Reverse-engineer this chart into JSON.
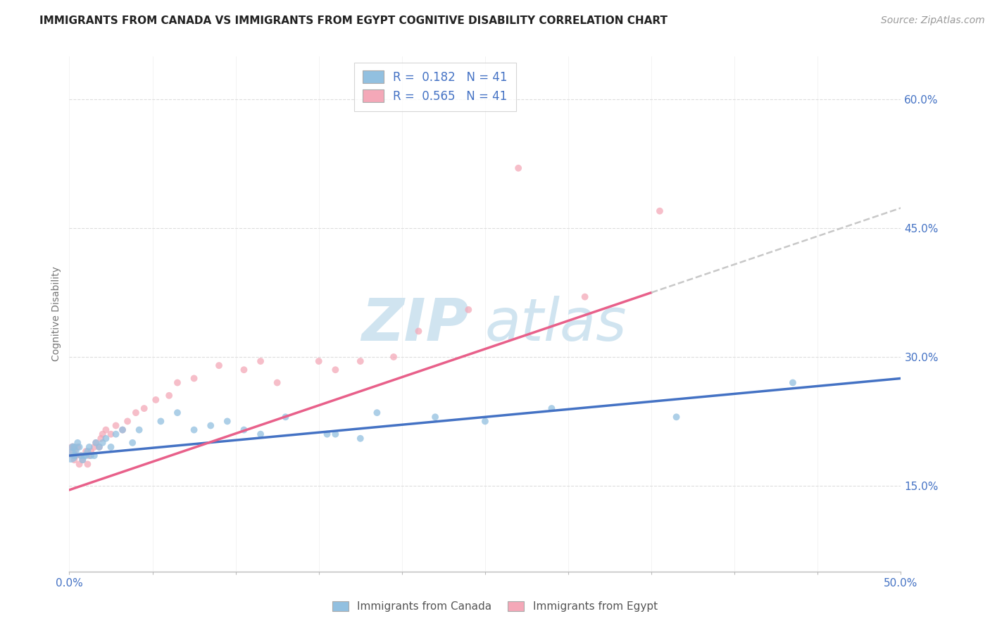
{
  "title": "IMMIGRANTS FROM CANADA VS IMMIGRANTS FROM EGYPT COGNITIVE DISABILITY CORRELATION CHART",
  "source_text": "Source: ZipAtlas.com",
  "ylabel": "Cognitive Disability",
  "xlim": [
    0.0,
    0.5
  ],
  "ylim": [
    0.05,
    0.65
  ],
  "x_ticks": [
    0.0,
    0.05,
    0.1,
    0.15,
    0.2,
    0.25,
    0.3,
    0.35,
    0.4,
    0.45,
    0.5
  ],
  "y_ticks": [
    0.15,
    0.3,
    0.45,
    0.6
  ],
  "R_canada": 0.182,
  "N_canada": 41,
  "R_egypt": 0.565,
  "N_egypt": 41,
  "color_canada": "#92c0e0",
  "color_egypt": "#f4a8b8",
  "color_canada_line": "#4472c4",
  "color_egypt_line": "#e8608a",
  "color_dash": "#c8c8c8",
  "watermark_color": "#d0e4f0",
  "title_color": "#222222",
  "tick_color": "#4472c4",
  "ylabel_color": "#777777",
  "source_color": "#999999",
  "legend_label_color": "#4472c4",
  "grid_color": "#dddddd",
  "canada_scatter_x": [
    0.001,
    0.002,
    0.003,
    0.003,
    0.004,
    0.005,
    0.006,
    0.007,
    0.008,
    0.009,
    0.01,
    0.011,
    0.012,
    0.013,
    0.015,
    0.016,
    0.018,
    0.02,
    0.022,
    0.025,
    0.028,
    0.032,
    0.038,
    0.042,
    0.055,
    0.065,
    0.075,
    0.085,
    0.095,
    0.105,
    0.115,
    0.13,
    0.155,
    0.16,
    0.175,
    0.185,
    0.22,
    0.25,
    0.29,
    0.365,
    0.435
  ],
  "canada_scatter_y": [
    0.185,
    0.195,
    0.195,
    0.185,
    0.19,
    0.2,
    0.195,
    0.185,
    0.18,
    0.185,
    0.185,
    0.19,
    0.195,
    0.185,
    0.185,
    0.2,
    0.195,
    0.2,
    0.205,
    0.195,
    0.21,
    0.215,
    0.2,
    0.215,
    0.225,
    0.235,
    0.215,
    0.22,
    0.225,
    0.215,
    0.21,
    0.23,
    0.21,
    0.21,
    0.205,
    0.235,
    0.23,
    0.225,
    0.24,
    0.23,
    0.27
  ],
  "canada_scatter_sizes": [
    200,
    60,
    50,
    50,
    50,
    50,
    50,
    50,
    50,
    50,
    50,
    50,
    50,
    50,
    50,
    50,
    50,
    50,
    50,
    50,
    50,
    50,
    50,
    50,
    50,
    50,
    50,
    50,
    50,
    50,
    50,
    50,
    50,
    50,
    50,
    50,
    50,
    50,
    50,
    50,
    50
  ],
  "egypt_scatter_x": [
    0.001,
    0.002,
    0.003,
    0.004,
    0.005,
    0.006,
    0.007,
    0.008,
    0.01,
    0.011,
    0.012,
    0.013,
    0.015,
    0.016,
    0.018,
    0.019,
    0.02,
    0.022,
    0.025,
    0.028,
    0.032,
    0.035,
    0.04,
    0.045,
    0.052,
    0.06,
    0.065,
    0.075,
    0.09,
    0.105,
    0.115,
    0.125,
    0.15,
    0.16,
    0.175,
    0.195,
    0.21,
    0.24,
    0.27,
    0.31,
    0.355
  ],
  "egypt_scatter_y": [
    0.19,
    0.195,
    0.18,
    0.185,
    0.195,
    0.175,
    0.185,
    0.18,
    0.19,
    0.175,
    0.185,
    0.19,
    0.195,
    0.2,
    0.195,
    0.205,
    0.21,
    0.215,
    0.21,
    0.22,
    0.215,
    0.225,
    0.235,
    0.24,
    0.25,
    0.255,
    0.27,
    0.275,
    0.29,
    0.285,
    0.295,
    0.27,
    0.295,
    0.285,
    0.295,
    0.3,
    0.33,
    0.355,
    0.52,
    0.37,
    0.47
  ],
  "egypt_scatter_sizes": [
    200,
    60,
    50,
    50,
    50,
    50,
    50,
    50,
    50,
    50,
    50,
    50,
    50,
    50,
    50,
    50,
    50,
    50,
    50,
    50,
    50,
    50,
    50,
    50,
    50,
    50,
    50,
    50,
    50,
    50,
    50,
    50,
    50,
    50,
    50,
    50,
    50,
    50,
    50,
    50,
    50
  ],
  "title_fontsize": 11,
  "axis_label_fontsize": 10,
  "tick_fontsize": 11,
  "legend_fontsize": 12,
  "source_fontsize": 10
}
